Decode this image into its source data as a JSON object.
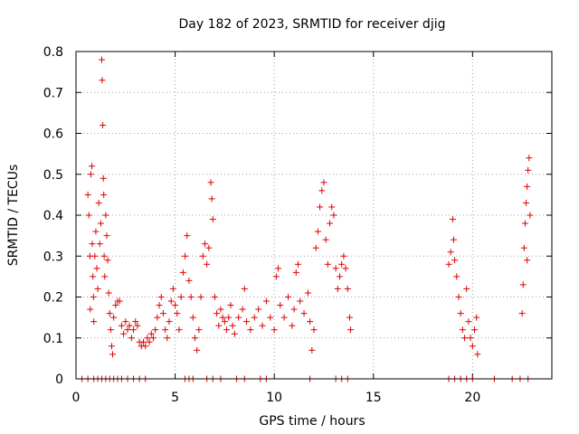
{
  "chart_data": {
    "type": "scatter",
    "title": "Day 182 of 2023, SRMTID for receiver djig",
    "xlabel": "GPS time / hours",
    "ylabel": "SRMTID / TECUs",
    "xlim": [
      0,
      24
    ],
    "ylim": [
      0,
      0.8
    ],
    "xticks": [
      0,
      5,
      10,
      15,
      20
    ],
    "xtick_labels": [
      "0",
      "5",
      "10",
      "15",
      "20"
    ],
    "yticks": [
      0,
      0.1,
      0.2,
      0.3,
      0.4,
      0.5,
      0.6,
      0.7,
      0.8
    ],
    "ytick_labels": [
      "0",
      "0.1",
      "0.2",
      "0.3",
      "0.4",
      "0.5",
      "0.6",
      "0.7",
      "0.8"
    ],
    "grid": true,
    "marker": "plus",
    "color": "#dd0000",
    "series": [
      {
        "name": "SRMTID",
        "points": [
          [
            0.6,
            0.45
          ],
          [
            0.65,
            0.4
          ],
          [
            0.7,
            0.3
          ],
          [
            0.72,
            0.17
          ],
          [
            0.75,
            0.5
          ],
          [
            0.8,
            0.52
          ],
          [
            0.82,
            0.33
          ],
          [
            0.85,
            0.25
          ],
          [
            0.88,
            0.2
          ],
          [
            0.9,
            0.14
          ],
          [
            0.95,
            0.3
          ],
          [
            1.0,
            0.36
          ],
          [
            1.05,
            0.27
          ],
          [
            1.1,
            0.22
          ],
          [
            1.15,
            0.43
          ],
          [
            1.2,
            0.33
          ],
          [
            1.25,
            0.38
          ],
          [
            1.3,
            0.78
          ],
          [
            1.32,
            0.73
          ],
          [
            1.35,
            0.62
          ],
          [
            1.38,
            0.49
          ],
          [
            1.4,
            0.45
          ],
          [
            1.42,
            0.3
          ],
          [
            1.45,
            0.25
          ],
          [
            1.5,
            0.4
          ],
          [
            1.55,
            0.35
          ],
          [
            1.6,
            0.29
          ],
          [
            1.65,
            0.21
          ],
          [
            1.7,
            0.16
          ],
          [
            1.75,
            0.12
          ],
          [
            1.8,
            0.08
          ],
          [
            1.85,
            0.06
          ],
          [
            1.9,
            0.15
          ],
          [
            2.0,
            0.18
          ],
          [
            2.1,
            0.19
          ],
          [
            2.2,
            0.19
          ],
          [
            2.3,
            0.13
          ],
          [
            2.4,
            0.11
          ],
          [
            2.5,
            0.14
          ],
          [
            2.6,
            0.12
          ],
          [
            2.7,
            0.13
          ],
          [
            2.8,
            0.1
          ],
          [
            2.9,
            0.12
          ],
          [
            3.0,
            0.14
          ],
          [
            3.1,
            0.13
          ],
          [
            3.2,
            0.09
          ],
          [
            3.3,
            0.08
          ],
          [
            3.4,
            0.09
          ],
          [
            3.5,
            0.08
          ],
          [
            3.6,
            0.1
          ],
          [
            3.7,
            0.09
          ],
          [
            3.8,
            0.11
          ],
          [
            3.9,
            0.1
          ],
          [
            4.0,
            0.12
          ],
          [
            4.1,
            0.15
          ],
          [
            4.2,
            0.18
          ],
          [
            4.3,
            0.2
          ],
          [
            4.4,
            0.16
          ],
          [
            4.5,
            0.12
          ],
          [
            4.6,
            0.1
          ],
          [
            4.7,
            0.14
          ],
          [
            4.8,
            0.19
          ],
          [
            4.9,
            0.22
          ],
          [
            5.0,
            0.18
          ],
          [
            5.1,
            0.16
          ],
          [
            5.2,
            0.12
          ],
          [
            5.3,
            0.2
          ],
          [
            5.4,
            0.26
          ],
          [
            5.5,
            0.3
          ],
          [
            5.6,
            0.35
          ],
          [
            5.7,
            0.24
          ],
          [
            5.8,
            0.2
          ],
          [
            5.9,
            0.15
          ],
          [
            6.0,
            0.1
          ],
          [
            6.1,
            0.07
          ],
          [
            6.2,
            0.12
          ],
          [
            6.3,
            0.2
          ],
          [
            6.4,
            0.3
          ],
          [
            6.5,
            0.33
          ],
          [
            6.6,
            0.28
          ],
          [
            6.7,
            0.32
          ],
          [
            6.8,
            0.48
          ],
          [
            6.85,
            0.44
          ],
          [
            6.9,
            0.39
          ],
          [
            7.0,
            0.2
          ],
          [
            7.1,
            0.16
          ],
          [
            7.2,
            0.13
          ],
          [
            7.3,
            0.17
          ],
          [
            7.4,
            0.15
          ],
          [
            7.5,
            0.14
          ],
          [
            7.6,
            0.12
          ],
          [
            7.7,
            0.15
          ],
          [
            7.8,
            0.18
          ],
          [
            7.9,
            0.13
          ],
          [
            8.0,
            0.11
          ],
          [
            8.2,
            0.15
          ],
          [
            8.4,
            0.17
          ],
          [
            8.5,
            0.22
          ],
          [
            8.6,
            0.14
          ],
          [
            8.8,
            0.12
          ],
          [
            9.0,
            0.15
          ],
          [
            9.2,
            0.17
          ],
          [
            9.4,
            0.13
          ],
          [
            9.6,
            0.19
          ],
          [
            9.8,
            0.15
          ],
          [
            10.0,
            0.12
          ],
          [
            10.1,
            0.25
          ],
          [
            10.2,
            0.27
          ],
          [
            10.3,
            0.18
          ],
          [
            10.5,
            0.15
          ],
          [
            10.7,
            0.2
          ],
          [
            10.9,
            0.13
          ],
          [
            11.0,
            0.17
          ],
          [
            11.1,
            0.26
          ],
          [
            11.2,
            0.28
          ],
          [
            11.3,
            0.19
          ],
          [
            11.5,
            0.16
          ],
          [
            11.7,
            0.21
          ],
          [
            11.8,
            0.14
          ],
          [
            11.9,
            0.07
          ],
          [
            12.0,
            0.12
          ],
          [
            12.1,
            0.32
          ],
          [
            12.2,
            0.36
          ],
          [
            12.3,
            0.42
          ],
          [
            12.4,
            0.46
          ],
          [
            12.5,
            0.48
          ],
          [
            12.6,
            0.34
          ],
          [
            12.7,
            0.28
          ],
          [
            12.8,
            0.38
          ],
          [
            12.9,
            0.42
          ],
          [
            13.0,
            0.4
          ],
          [
            13.1,
            0.27
          ],
          [
            13.2,
            0.22
          ],
          [
            13.3,
            0.25
          ],
          [
            13.4,
            0.28
          ],
          [
            13.5,
            0.3
          ],
          [
            13.6,
            0.27
          ],
          [
            13.7,
            0.22
          ],
          [
            13.8,
            0.15
          ],
          [
            13.85,
            0.12
          ],
          [
            18.8,
            0.28
          ],
          [
            18.9,
            0.31
          ],
          [
            19.0,
            0.39
          ],
          [
            19.05,
            0.34
          ],
          [
            19.1,
            0.29
          ],
          [
            19.2,
            0.25
          ],
          [
            19.3,
            0.2
          ],
          [
            19.4,
            0.16
          ],
          [
            19.5,
            0.12
          ],
          [
            19.6,
            0.1
          ],
          [
            19.7,
            0.22
          ],
          [
            19.8,
            0.14
          ],
          [
            19.9,
            0.1
          ],
          [
            20.0,
            0.08
          ],
          [
            20.1,
            0.12
          ],
          [
            20.2,
            0.15
          ],
          [
            20.25,
            0.06
          ],
          [
            22.5,
            0.16
          ],
          [
            22.55,
            0.23
          ],
          [
            22.6,
            0.32
          ],
          [
            22.65,
            0.38
          ],
          [
            22.7,
            0.43
          ],
          [
            22.75,
            0.47
          ],
          [
            22.8,
            0.51
          ],
          [
            22.85,
            0.54
          ],
          [
            22.9,
            0.4
          ],
          [
            22.75,
            0.29
          ]
        ]
      }
    ],
    "zero_points_x": [
      0.3,
      0.6,
      0.9,
      1.1,
      1.3,
      1.5,
      1.7,
      1.9,
      2.1,
      2.3,
      2.6,
      2.9,
      3.2,
      3.5,
      5.5,
      5.7,
      5.9,
      6.6,
      6.9,
      7.3,
      8.1,
      8.5,
      9.3,
      9.6,
      11.8,
      13.1,
      13.4,
      13.7,
      18.8,
      19.1,
      19.4,
      19.7,
      20.0,
      21.1,
      22.0,
      22.4,
      22.8
    ]
  }
}
